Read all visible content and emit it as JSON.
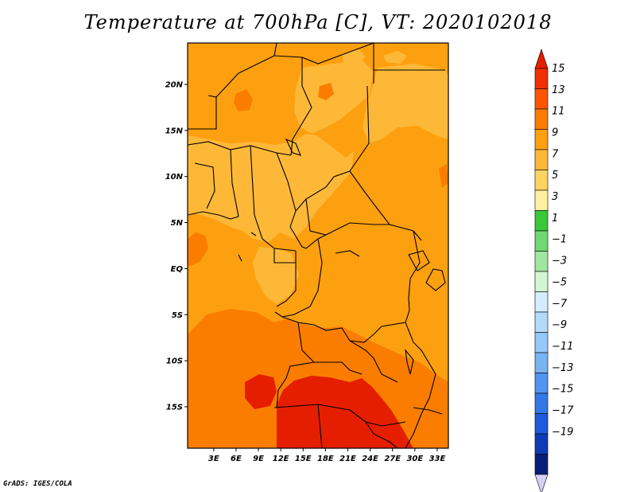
{
  "title": "Temperature at 700hPa [C], VT: 2020102018",
  "credit": "GrADS: IGES/COLA",
  "map": {
    "lat_range": [
      -19.5,
      24.5
    ],
    "lon_range": [
      -0.5,
      34.5
    ],
    "lat_ticks": [
      {
        "value": 20,
        "label": "20N"
      },
      {
        "value": 15,
        "label": "15N"
      },
      {
        "value": 10,
        "label": "10N"
      },
      {
        "value": 5,
        "label": "5N"
      },
      {
        "value": 0,
        "label": "EQ"
      },
      {
        "value": -5,
        "label": "5S"
      },
      {
        "value": -10,
        "label": "10S"
      },
      {
        "value": -15,
        "label": "15S"
      }
    ],
    "lon_ticks": [
      {
        "value": 3,
        "label": "3E"
      },
      {
        "value": 6,
        "label": "6E"
      },
      {
        "value": 9,
        "label": "9E"
      },
      {
        "value": 12,
        "label": "12E"
      },
      {
        "value": 15,
        "label": "15E"
      },
      {
        "value": 18,
        "label": "18E"
      },
      {
        "value": 21,
        "label": "21E"
      },
      {
        "value": 24,
        "label": "24E"
      },
      {
        "value": 27,
        "label": "27E"
      },
      {
        "value": 30,
        "label": "30E"
      },
      {
        "value": 33,
        "label": "33E"
      }
    ],
    "base_color": "#fda010"
  },
  "colorbar": {
    "bins": [
      {
        "color": "#f03000"
      },
      {
        "color": "#ff5500"
      },
      {
        "color": "#fa7d00"
      },
      {
        "color": "#fda010"
      },
      {
        "color": "#feb838"
      },
      {
        "color": "#fed460"
      },
      {
        "color": "#fff0a0"
      },
      {
        "color": "#38c838"
      },
      {
        "color": "#70d870"
      },
      {
        "color": "#a0e6a0"
      },
      {
        "color": "#d2f5d2"
      },
      {
        "color": "#d4ecff"
      },
      {
        "color": "#b4dafa"
      },
      {
        "color": "#96c8fa"
      },
      {
        "color": "#78b4f0"
      },
      {
        "color": "#5096f0"
      },
      {
        "color": "#3278e6"
      },
      {
        "color": "#1e5adc"
      },
      {
        "color": "#0f3cb4"
      },
      {
        "color": "#0a1e78"
      }
    ],
    "over_color": "#e61e00",
    "under_color": "#d4d0f8",
    "labels": [
      "15",
      "13",
      "11",
      "9",
      "7",
      "5",
      "3",
      "1",
      "−1",
      "−3",
      "−5",
      "−7",
      "−9",
      "−11",
      "−13",
      "−15",
      "−17",
      "−19"
    ]
  }
}
